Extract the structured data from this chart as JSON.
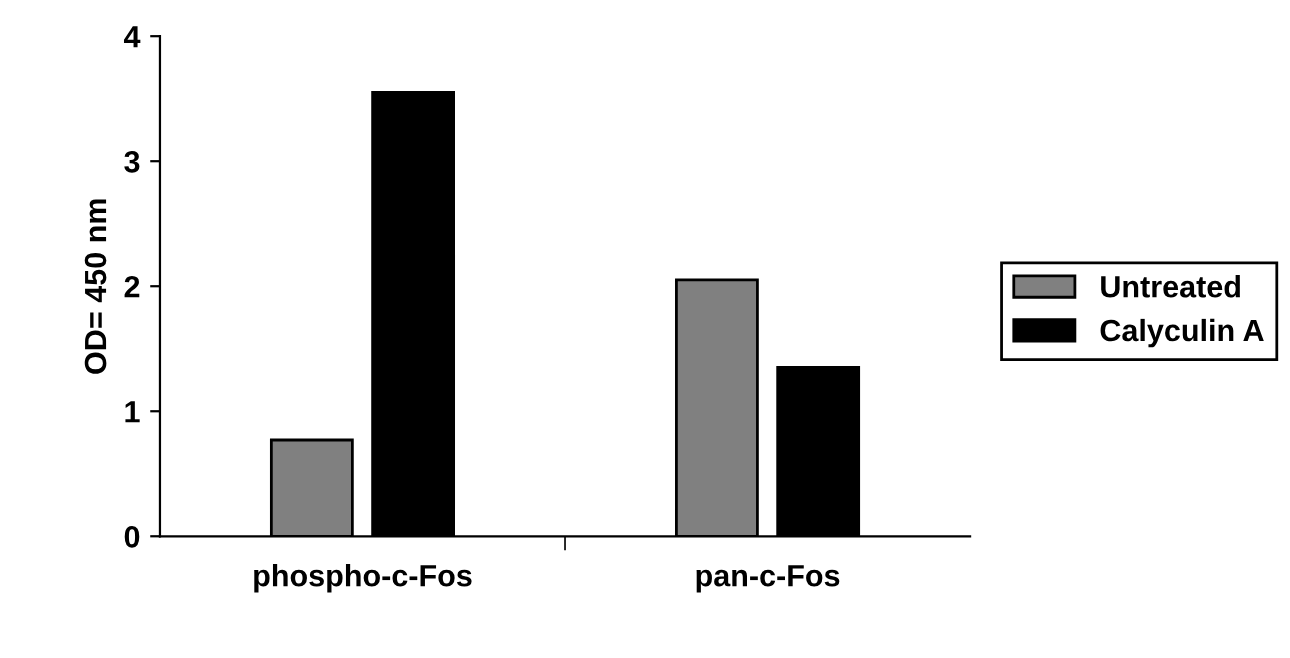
{
  "chart_data": {
    "type": "bar",
    "ylabel": "OD= 450 nm",
    "categories": [
      "phospho-c-Fos",
      "pan-c-Fos"
    ],
    "series": [
      {
        "name": "Untreated",
        "color": "#808080",
        "values": [
          0.77,
          2.05
        ]
      },
      {
        "name": "Calyculin A",
        "color": "#000000",
        "values": [
          3.55,
          1.35
        ]
      }
    ],
    "ylim": [
      0,
      4
    ],
    "yticks": [
      0,
      1,
      2,
      3,
      4
    ],
    "grid": false,
    "legend": "right"
  }
}
